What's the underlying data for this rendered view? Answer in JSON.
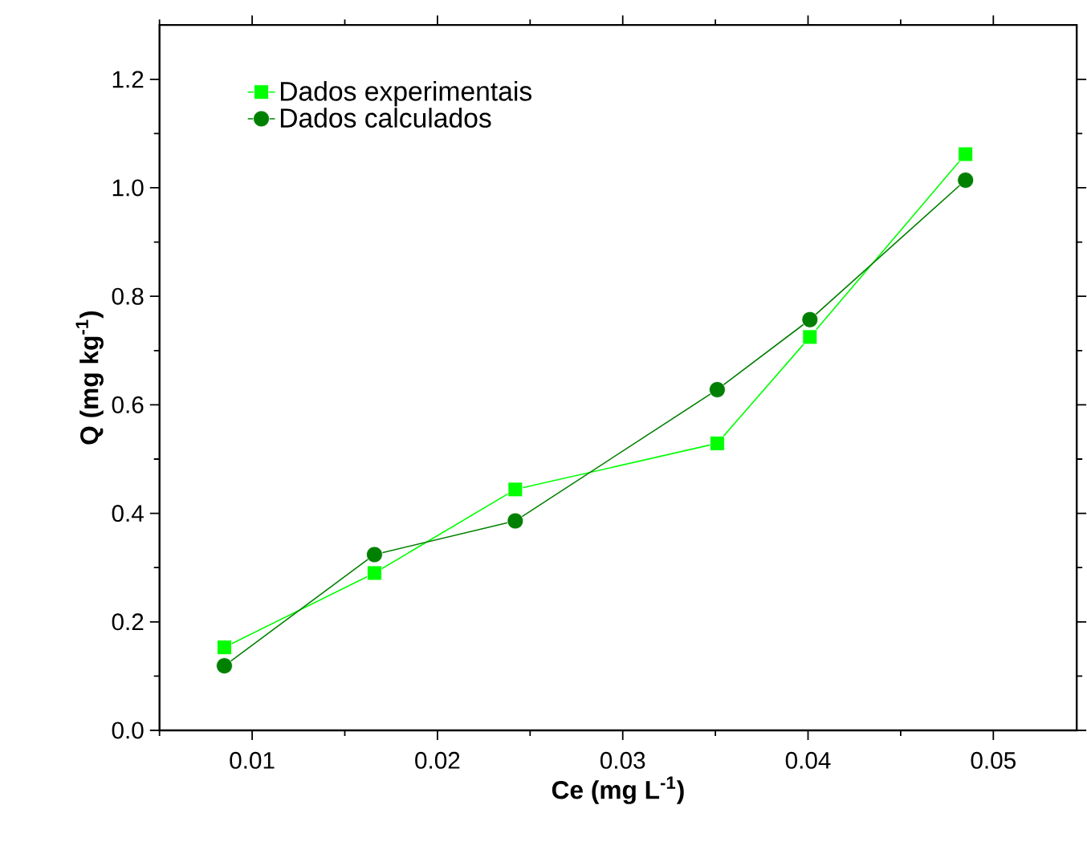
{
  "chart_data": {
    "type": "line",
    "xlabel": "Ce (mg L$^{-1}$)",
    "ylabel": "Q (mg kg$^{-1}$)",
    "x": [
      0.0085,
      0.0166,
      0.0242,
      0.0351,
      0.0401,
      0.0485
    ],
    "series": [
      {
        "name": "Dados experimentais",
        "color": "#00ff00",
        "marker": "square",
        "values": [
          0.153,
          0.29,
          0.444,
          0.529,
          0.725,
          1.062
        ]
      },
      {
        "name": "Dados calculados",
        "color": "#008000",
        "marker": "circle",
        "values": [
          0.119,
          0.324,
          0.386,
          0.628,
          0.757,
          1.014
        ]
      }
    ],
    "xlim": [
      0.005,
      0.0545
    ],
    "xticks": [
      {
        "value": 0.005,
        "label": null
      },
      0.01,
      {
        "value": 0.015,
        "label": null
      },
      0.02,
      {
        "value": 0.025,
        "label": null
      },
      0.03,
      {
        "value": 0.035,
        "label": null
      },
      0.04,
      {
        "value": 0.045,
        "label": null
      },
      0.05
    ],
    "ylim": [
      0,
      1.3
    ],
    "yticks": [
      {
        "value": 0,
        "label": "0.0"
      },
      {
        "value": 0.1,
        "label": null
      },
      0.2,
      {
        "value": 0.3,
        "label": null
      },
      0.4,
      {
        "value": 0.5,
        "label": null
      },
      0.6,
      {
        "value": 0.7,
        "label": null
      },
      0.8,
      {
        "value": 0.9,
        "label": null
      },
      {
        "value": 1.0,
        "label": "1.0"
      },
      {
        "value": 1.1,
        "label": null
      },
      1.2
    ],
    "legend": "top left",
    "grid": false,
    "line_style": "solid"
  }
}
